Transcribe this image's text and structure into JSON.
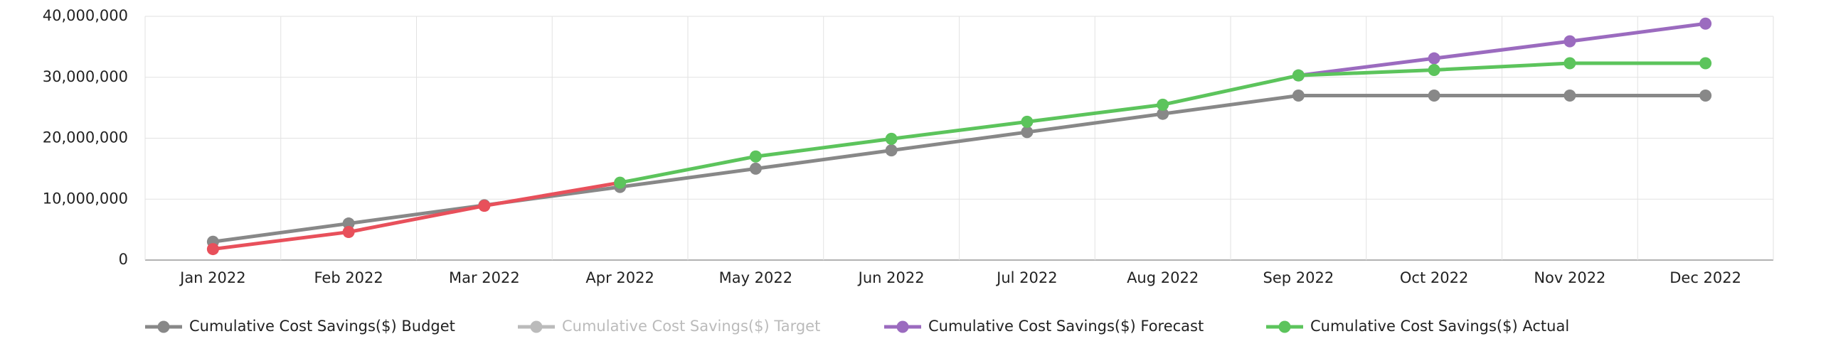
{
  "chart_data": {
    "type": "line",
    "categories": [
      "Jan 2022",
      "Feb 2022",
      "Mar 2022",
      "Apr 2022",
      "May 2022",
      "Jun 2022",
      "Jul 2022",
      "Aug 2022",
      "Sep 2022",
      "Oct 2022",
      "Nov 2022",
      "Dec 2022"
    ],
    "ylim": [
      0,
      40000000
    ],
    "yticks": [
      0,
      {
        "value": 10000000,
        "label": "10,000,000"
      },
      {
        "value": 20000000,
        "label": "20,000,000"
      },
      {
        "value": 30000000,
        "label": "30,000,000"
      },
      {
        "value": 40000000,
        "label": "40,000,000"
      }
    ],
    "grid": true,
    "legend": "bottom",
    "series": [
      {
        "name": "Cumulative Cost Savings($) Budget",
        "color": "#888888",
        "values": [
          3000000,
          6000000,
          9000000,
          12000000,
          15000000,
          18000000,
          21000000,
          24000000,
          27000000,
          27000000,
          27000000,
          27000000
        ]
      },
      {
        "name": "Cumulative Cost Savings($) Target",
        "color": "#bbbbbb",
        "visible": false
      },
      {
        "name": "Cumulative Cost Savings($) Forecast",
        "color": "#9b6bbf",
        "values": [
          null,
          null,
          null,
          null,
          null,
          null,
          null,
          null,
          30300000,
          33100000,
          35900000,
          38800000
        ]
      },
      {
        "name": "Cumulative Cost Savings($) Actual",
        "color": "#5cc45c",
        "values": [
          1800000,
          4600000,
          8900000,
          12700000,
          17000000,
          19900000,
          22700000,
          25500000,
          30300000,
          31200000,
          32300000,
          32300000
        ],
        "point_colors": [
          "#e8505b",
          "#e8505b",
          "#e8505b",
          "#5cc45c",
          "#5cc45c",
          "#5cc45c",
          "#5cc45c",
          "#5cc45c",
          "#5cc45c",
          "#5cc45c",
          "#5cc45c",
          "#5cc45c"
        ]
      }
    ]
  }
}
